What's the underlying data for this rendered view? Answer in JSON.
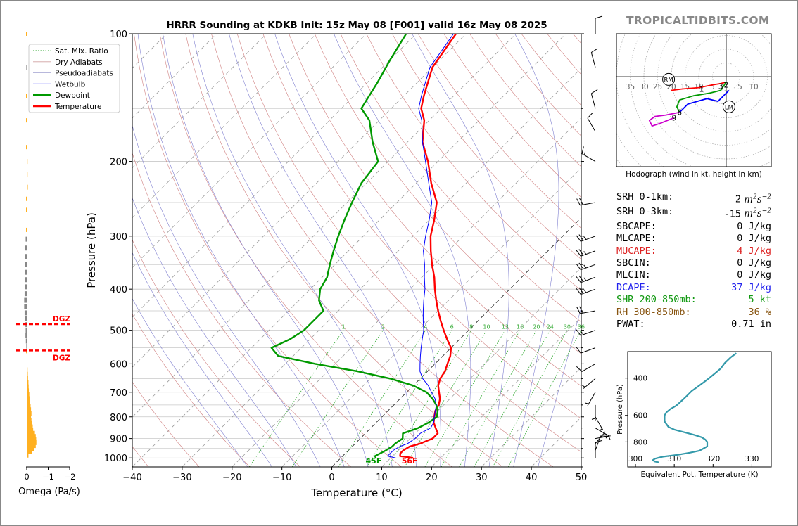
{
  "title": "HRRR Sounding at KDKB Init: 15z May 08 [F001] valid 16z May 08 2025",
  "brand": "TROPICALTIDBITS.COM",
  "colors": {
    "temperature": "#ff0000",
    "dewpoint": "#009900",
    "wetbulb": "#0000ff",
    "dry_adiabat": "#d08080",
    "moist_adiabat": "#8080d0",
    "mixing_ratio": "#33aa33",
    "omega": "#ffb020",
    "omega_neg": "#888888",
    "dgz": "#ff0000"
  },
  "legend": [
    "Sat. Mix. Ratio",
    "Dry Adiabats",
    "Pseudoadiabats",
    "Wetbulb",
    "Dewpoint",
    "Temperature"
  ],
  "chart_data": [
    {
      "type": "line",
      "name": "skew-t",
      "xlabel": "Temperature (°C)",
      "ylabel": "Pressure (hPa)",
      "xlim": [
        -40,
        50
      ],
      "ylim": [
        1050,
        100
      ],
      "x_ticks": [
        -40,
        -30,
        -20,
        -10,
        0,
        10,
        20,
        30,
        40,
        50
      ],
      "y_ticks": [
        100,
        200,
        300,
        400,
        500,
        600,
        700,
        800,
        900,
        1000
      ],
      "mixing_ratio_labels": [
        "1",
        "2",
        "4",
        "6",
        "8",
        "10",
        "13",
        "16",
        "20",
        "24",
        "30",
        "36"
      ],
      "surface_labels": {
        "dewpoint": "45F",
        "temperature": "56F"
      },
      "series": [
        {
          "name": "Temperature",
          "points": [
            [
              1000,
              14.5
            ],
            [
              990,
              11.5
            ],
            [
              975,
              11
            ],
            [
              960,
              11
            ],
            [
              940,
              11.5
            ],
            [
              925,
              13
            ],
            [
              900,
              14.5
            ],
            [
              875,
              14.5
            ],
            [
              850,
              13
            ],
            [
              825,
              11.5
            ],
            [
              800,
              10.5
            ],
            [
              775,
              9.5
            ],
            [
              750,
              9
            ],
            [
              725,
              8
            ],
            [
              700,
              6.5
            ],
            [
              675,
              5
            ],
            [
              650,
              4
            ],
            [
              625,
              3.5
            ],
            [
              600,
              2.5
            ],
            [
              575,
              1.5
            ],
            [
              550,
              0
            ],
            [
              525,
              -2.5
            ],
            [
              500,
              -5
            ],
            [
              475,
              -7.5
            ],
            [
              450,
              -10
            ],
            [
              425,
              -12.5
            ],
            [
              400,
              -15
            ],
            [
              375,
              -17.5
            ],
            [
              350,
              -20.5
            ],
            [
              325,
              -23.5
            ],
            [
              300,
              -26.5
            ],
            [
              275,
              -29
            ],
            [
              250,
              -32
            ],
            [
              225,
              -37
            ],
            [
              200,
              -42
            ],
            [
              180,
              -47
            ],
            [
              160,
              -51
            ],
            [
              150,
              -54
            ],
            [
              140,
              -56
            ],
            [
              120,
              -60
            ],
            [
              100,
              -62
            ]
          ]
        },
        {
          "name": "Dewpoint",
          "points": [
            [
              1000,
              7
            ],
            [
              990,
              6.5
            ],
            [
              975,
              7
            ],
            [
              960,
              7.5
            ],
            [
              940,
              8
            ],
            [
              925,
              8
            ],
            [
              900,
              8.5
            ],
            [
              875,
              7.5
            ],
            [
              850,
              9.5
            ],
            [
              825,
              10.5
            ],
            [
              800,
              11
            ],
            [
              775,
              10
            ],
            [
              750,
              8.5
            ],
            [
              725,
              6.5
            ],
            [
              700,
              4
            ],
            [
              675,
              0
            ],
            [
              650,
              -6
            ],
            [
              625,
              -14
            ],
            [
              600,
              -24
            ],
            [
              575,
              -33
            ],
            [
              550,
              -36
            ],
            [
              525,
              -34
            ],
            [
              500,
              -33
            ],
            [
              475,
              -33
            ],
            [
              450,
              -33
            ],
            [
              425,
              -36
            ],
            [
              400,
              -38
            ],
            [
              375,
              -39
            ],
            [
              350,
              -41
            ],
            [
              325,
              -43
            ],
            [
              300,
              -45
            ],
            [
              275,
              -47
            ],
            [
              250,
              -49
            ],
            [
              225,
              -51
            ],
            [
              200,
              -52
            ],
            [
              180,
              -57
            ],
            [
              160,
              -62
            ],
            [
              150,
              -66
            ],
            [
              130,
              -68
            ],
            [
              115,
              -70
            ],
            [
              100,
              -72
            ]
          ]
        },
        {
          "name": "Wetbulb",
          "points": [
            [
              1000,
              11
            ],
            [
              990,
              9
            ],
            [
              975,
              9
            ],
            [
              960,
              9
            ],
            [
              940,
              9.5
            ],
            [
              925,
              10.5
            ],
            [
              900,
              11
            ],
            [
              875,
              11
            ],
            [
              850,
              12
            ],
            [
              825,
              11.5
            ],
            [
              800,
              10.5
            ],
            [
              775,
              9.5
            ],
            [
              750,
              8.5
            ],
            [
              725,
              7
            ],
            [
              700,
              5
            ],
            [
              675,
              3
            ],
            [
              650,
              0.5
            ],
            [
              625,
              -1.5
            ],
            [
              600,
              -3
            ],
            [
              575,
              -4.5
            ],
            [
              550,
              -6
            ],
            [
              525,
              -7.5
            ],
            [
              500,
              -9
            ],
            [
              475,
              -11
            ],
            [
              450,
              -13
            ],
            [
              425,
              -15
            ],
            [
              400,
              -17
            ],
            [
              375,
              -19.5
            ],
            [
              350,
              -22
            ],
            [
              325,
              -25
            ],
            [
              300,
              -27.5
            ],
            [
              275,
              -30
            ],
            [
              250,
              -33
            ],
            [
              225,
              -37.5
            ],
            [
              200,
              -42.5
            ],
            [
              180,
              -47
            ],
            [
              160,
              -51.5
            ],
            [
              150,
              -54.5
            ],
            [
              140,
              -56.5
            ],
            [
              120,
              -60.5
            ],
            [
              100,
              -62.5
            ]
          ]
        }
      ]
    },
    {
      "type": "bar",
      "name": "omega",
      "xlabel": "Omega (Pa/s)",
      "x_ticks": [
        "0",
        "−1",
        "−2"
      ],
      "dgz_label": "DGZ",
      "dgz_levels": [
        484,
        558
      ],
      "levels": [
        1000,
        985,
        965,
        950,
        935,
        920,
        905,
        890,
        875,
        860,
        845,
        830,
        815,
        800,
        785,
        770,
        755,
        740,
        725,
        710,
        695,
        680,
        665,
        650,
        635,
        620,
        605,
        590,
        575,
        560,
        545,
        530,
        515,
        500,
        485,
        470,
        455,
        440,
        425,
        410,
        395,
        380,
        365,
        350,
        335,
        320,
        305,
        290,
        275,
        260,
        245,
        230,
        215,
        200,
        185,
        160,
        140,
        120,
        100
      ],
      "values": [
        0.02,
        0.08,
        0.25,
        0.35,
        0.42,
        0.45,
        0.44,
        0.42,
        0.38,
        0.3,
        0.28,
        0.25,
        0.22,
        0.2,
        0.22,
        0.2,
        0.18,
        0.14,
        0.13,
        0.12,
        0.1,
        0.09,
        0.08,
        0.06,
        0.05,
        0.04,
        0.03,
        0.02,
        0.01,
        0.0,
        -0.02,
        -0.04,
        -0.06,
        -0.05,
        -0.06,
        -0.08,
        -0.1,
        -0.12,
        -0.12,
        -0.1,
        -0.09,
        -0.08,
        -0.08,
        -0.07,
        -0.09,
        -0.08,
        -0.05,
        0.0,
        0.03,
        0.0,
        0.0,
        0.05,
        0.04,
        0.04,
        0.0,
        0.0,
        0.0,
        -0.02,
        0.0
      ]
    },
    {
      "type": "line",
      "name": "hodograph",
      "xlabel": "Hodograph (wind in kt, height in km)",
      "range_labels": [
        "35",
        "30",
        "25",
        "20",
        "15",
        "10",
        "5",
        "5",
        "10"
      ],
      "range_values": [
        -35,
        -30,
        -25,
        -20,
        -15,
        -10,
        -5,
        5,
        10
      ],
      "height_labels": [
        "1",
        "2",
        "3",
        "6",
        "9"
      ],
      "markers": [
        "RM",
        "LM"
      ],
      "rm": [
        -21,
        -1
      ],
      "lm": [
        1,
        -11
      ],
      "segments": [
        {
          "color": "#ff0000",
          "points": [
            [
              -20,
              -5
            ],
            [
              -16,
              -4.5
            ],
            [
              -10,
              -4
            ],
            [
              -5,
              -3
            ],
            [
              -2,
              -2.5
            ],
            [
              0,
              -2
            ]
          ]
        },
        {
          "color": "#009900",
          "points": [
            [
              0,
              -2
            ],
            [
              -2,
              -5
            ],
            [
              -6,
              -6
            ],
            [
              -12,
              -7
            ],
            [
              -17,
              -8.5
            ],
            [
              -18,
              -11
            ],
            [
              -17,
              -13
            ]
          ]
        },
        {
          "color": "#0000ff",
          "points": [
            [
              -17,
              -13
            ],
            [
              -14,
              -10
            ],
            [
              -7,
              -8
            ],
            [
              -3,
              -9
            ],
            [
              0,
              -6
            ],
            [
              1,
              -5
            ]
          ]
        },
        {
          "color": "#cc00cc",
          "points": [
            [
              -17,
              -13
            ],
            [
              -22,
              -14
            ],
            [
              -26,
              -14.5
            ],
            [
              -28,
              -16
            ],
            [
              -27,
              -18
            ],
            [
              -24,
              -17
            ],
            [
              -19,
              -15
            ]
          ]
        }
      ],
      "height_points": [
        [
          -9,
          -4.5
        ],
        [
          0,
          -3
        ],
        [
          -2,
          -3.5
        ],
        [
          -17,
          -13
        ],
        [
          -19,
          -15
        ]
      ]
    },
    {
      "type": "line",
      "name": "theta-e",
      "xlabel": "Equivalent Pot. Temperature (K)",
      "ylabel": "Pressure (hPa)",
      "xlim": [
        298,
        335
      ],
      "ylim": [
        1050,
        300
      ],
      "x_ticks": [
        300,
        310,
        320,
        330
      ],
      "y_ticks": [
        400,
        600,
        800
      ],
      "series": [
        {
          "name": "theta-e",
          "points": [
            [
              1000,
              306
            ],
            [
              990,
              305
            ],
            [
              975,
              304.5
            ],
            [
              960,
              305
            ],
            [
              940,
              307
            ],
            [
              920,
              311
            ],
            [
              900,
              314
            ],
            [
              880,
              316.5
            ],
            [
              860,
              317.5
            ],
            [
              840,
              318.5
            ],
            [
              820,
              318.5
            ],
            [
              800,
              318.5
            ],
            [
              780,
              318
            ],
            [
              760,
              317
            ],
            [
              740,
              315
            ],
            [
              720,
              312.5
            ],
            [
              700,
              310
            ],
            [
              680,
              308.5
            ],
            [
              660,
              308
            ],
            [
              640,
              307.5
            ],
            [
              620,
              307.5
            ],
            [
              600,
              307.5
            ],
            [
              580,
              308
            ],
            [
              560,
              309
            ],
            [
              540,
              310.5
            ],
            [
              520,
              311.5
            ],
            [
              500,
              312.5
            ],
            [
              480,
              313.5
            ],
            [
              460,
              314.5
            ],
            [
              440,
              316
            ],
            [
              420,
              317.5
            ],
            [
              400,
              319
            ],
            [
              380,
              320.5
            ],
            [
              360,
              322
            ],
            [
              340,
              323
            ],
            [
              320,
              324.5
            ],
            [
              305,
              326
            ]
          ]
        }
      ]
    }
  ],
  "wind_barbs": [
    [
      1000,
      0,
      10
    ],
    [
      960,
      20,
      10
    ],
    [
      925,
      40,
      5
    ],
    [
      900,
      80,
      5
    ],
    [
      850,
      120,
      5
    ],
    [
      800,
      150,
      5
    ],
    [
      750,
      180,
      5
    ],
    [
      700,
      210,
      5
    ],
    [
      650,
      230,
      5
    ],
    [
      600,
      240,
      10
    ],
    [
      550,
      250,
      10
    ],
    [
      500,
      250,
      15
    ],
    [
      450,
      260,
      20
    ],
    [
      400,
      250,
      25
    ],
    [
      375,
      250,
      25
    ],
    [
      350,
      250,
      25
    ],
    [
      325,
      250,
      25
    ],
    [
      300,
      250,
      25
    ],
    [
      250,
      260,
      20
    ],
    [
      200,
      300,
      15
    ],
    [
      170,
      330,
      10
    ],
    [
      150,
      345,
      10
    ],
    [
      120,
      345,
      10
    ],
    [
      100,
      0,
      10
    ]
  ],
  "indices": [
    {
      "label": "SRH 0-1km:",
      "value": "2",
      "unit": "m2s-2",
      "color": "#000000"
    },
    {
      "label": "SRH 0-3km:",
      "value": "-15",
      "unit": "m2s-2",
      "color": "#000000"
    },
    {
      "label": "SBCAPE:",
      "value": "0",
      "unit": "J/kg",
      "color": "#000000"
    },
    {
      "label": "MLCAPE:",
      "value": "0",
      "unit": "J/kg",
      "color": "#000000"
    },
    {
      "label": "MUCAPE:",
      "value": "4",
      "unit": "J/kg",
      "color": "#dd2222"
    },
    {
      "label": "SBCIN:",
      "value": "0",
      "unit": "J/kg",
      "color": "#000000"
    },
    {
      "label": "MLCIN:",
      "value": "0",
      "unit": "J/kg",
      "color": "#000000"
    },
    {
      "label": "DCAPE:",
      "value": "37",
      "unit": "J/kg",
      "color": "#2222ee"
    },
    {
      "label": "SHR 200-850mb:",
      "value": "5",
      "unit": "kt",
      "color": "#119911"
    },
    {
      "label": "RH 300-850mb:",
      "value": "36",
      "unit": "%",
      "color": "#885511"
    },
    {
      "label": "PWAT:",
      "value": "0.71",
      "unit": "in",
      "color": "#000000"
    }
  ]
}
